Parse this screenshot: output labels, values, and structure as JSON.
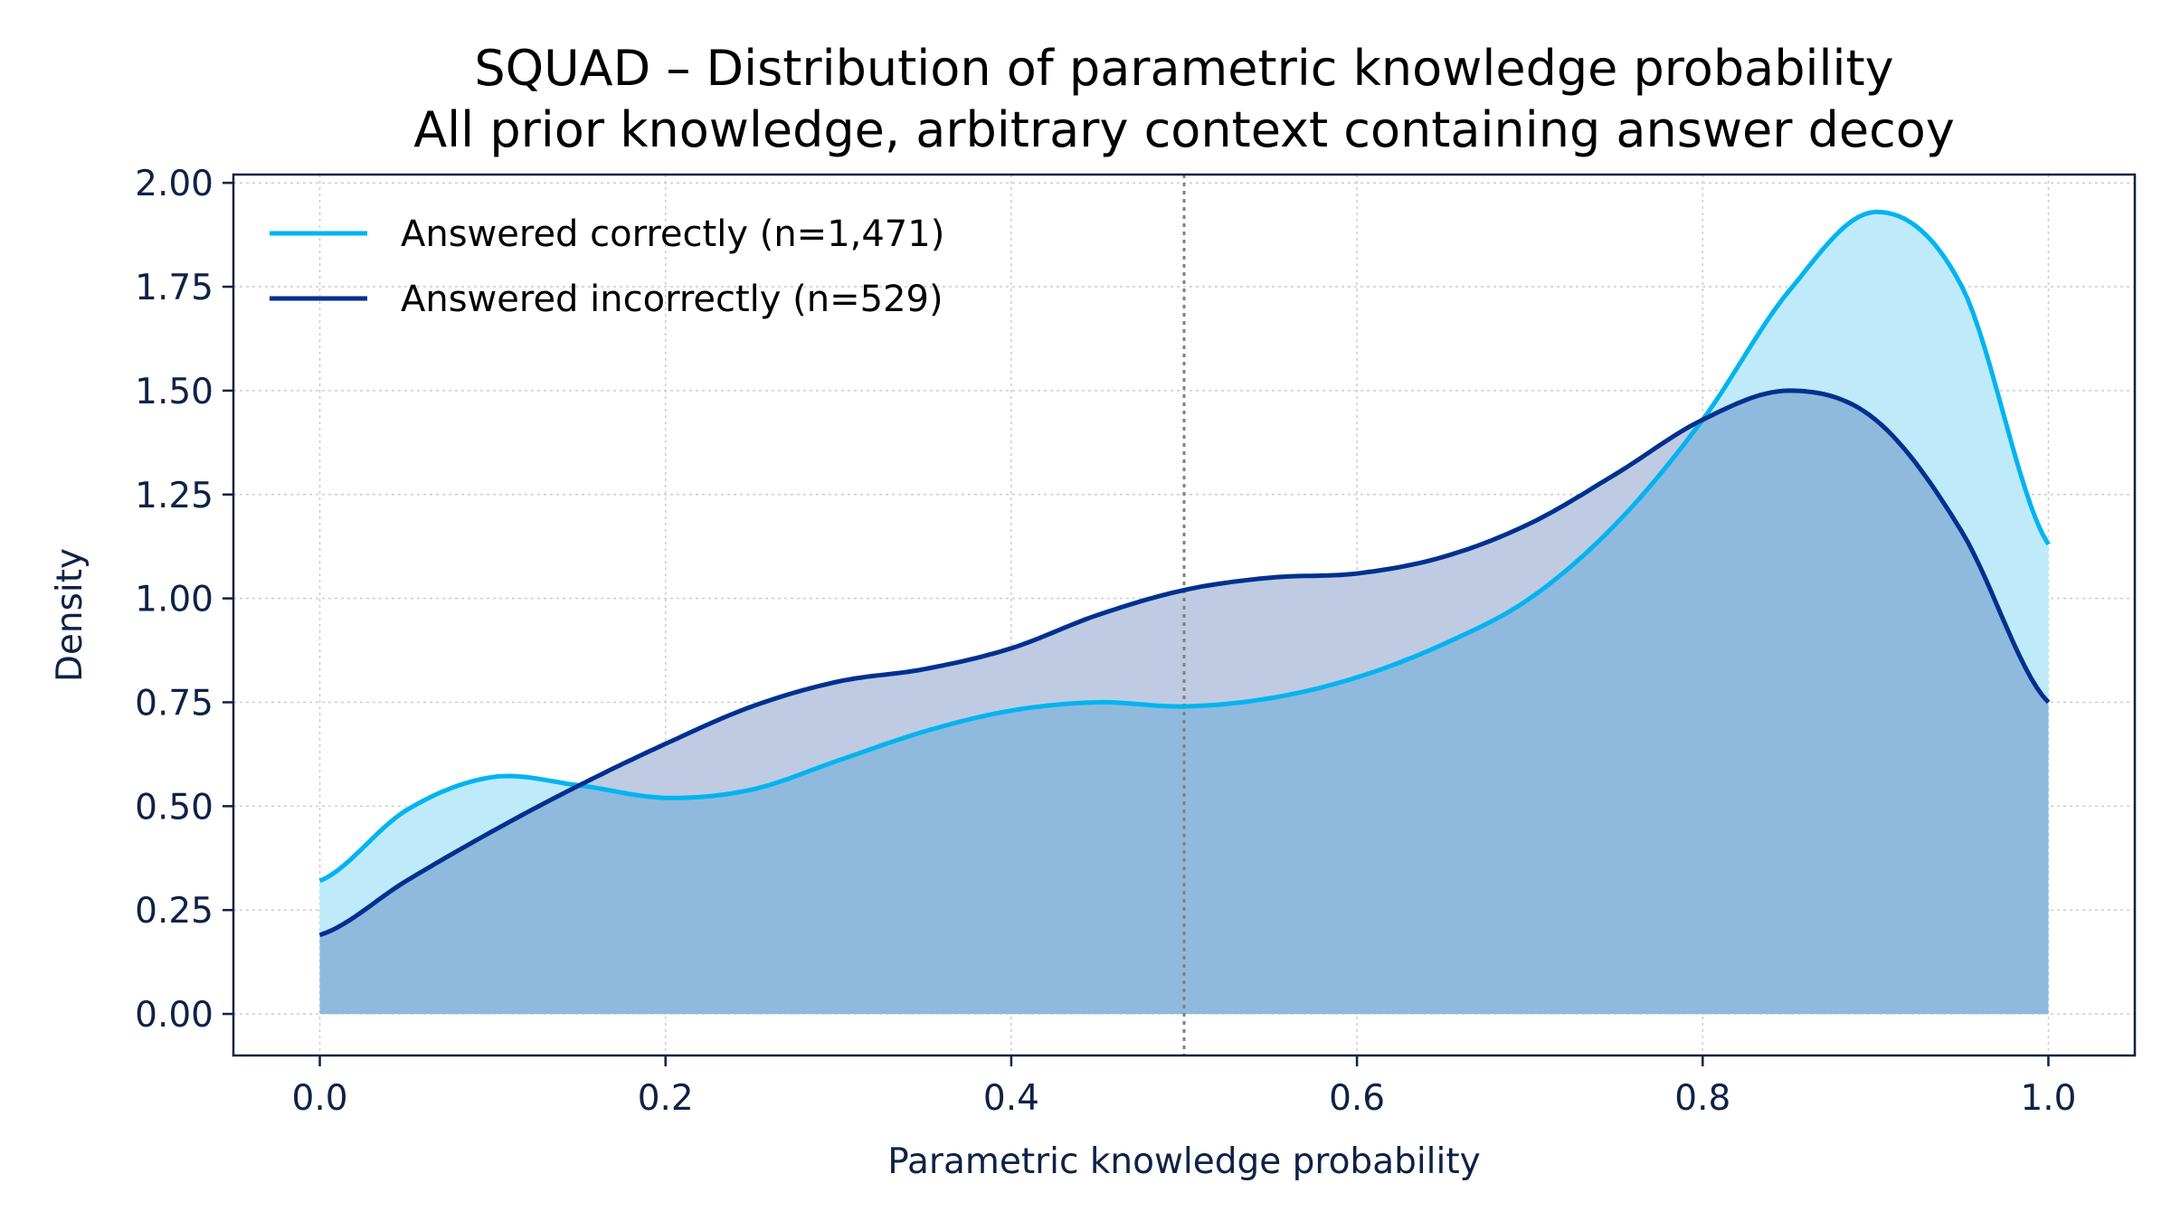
{
  "chart_data": {
    "type": "area",
    "title": "SQUAD – Distribution of parametric knowledge probability",
    "subtitle": "All prior knowledge, arbitrary context containing answer decoy",
    "xlabel": "Parametric knowledge probability",
    "ylabel": "Density",
    "xlim": [
      -0.05,
      1.05
    ],
    "ylim": [
      -0.1,
      2.02
    ],
    "xticks": [
      "0.0",
      "0.2",
      "0.4",
      "0.6",
      "0.8",
      "1.0"
    ],
    "yticks": [
      "0.00",
      "0.25",
      "0.50",
      "0.75",
      "1.00",
      "1.25",
      "1.50",
      "1.75",
      "2.00"
    ],
    "grid": true,
    "legend_position": "top-left",
    "reference_line_x": 0.5,
    "series": [
      {
        "name": "Answered correctly (n=1,471)",
        "color": "#00b4f0",
        "fill": "#bfeaf9",
        "x": [
          0.0,
          0.05,
          0.1,
          0.15,
          0.2,
          0.25,
          0.3,
          0.35,
          0.4,
          0.45,
          0.5,
          0.55,
          0.6,
          0.65,
          0.7,
          0.75,
          0.8,
          0.85,
          0.9,
          0.95,
          1.0
        ],
        "y": [
          0.32,
          0.49,
          0.57,
          0.55,
          0.52,
          0.54,
          0.61,
          0.68,
          0.73,
          0.75,
          0.74,
          0.76,
          0.81,
          0.89,
          1.0,
          1.18,
          1.43,
          1.74,
          1.93,
          1.75,
          1.13
        ]
      },
      {
        "name": "Answered incorrectly (n=529)",
        "color": "#00308f",
        "fill": "#bfcbe3",
        "x": [
          0.0,
          0.05,
          0.1,
          0.15,
          0.2,
          0.25,
          0.3,
          0.35,
          0.4,
          0.45,
          0.5,
          0.55,
          0.6,
          0.65,
          0.7,
          0.75,
          0.8,
          0.85,
          0.9,
          0.95,
          1.0
        ],
        "y": [
          0.19,
          0.32,
          0.44,
          0.55,
          0.65,
          0.74,
          0.8,
          0.83,
          0.88,
          0.96,
          1.02,
          1.05,
          1.06,
          1.1,
          1.18,
          1.3,
          1.43,
          1.5,
          1.43,
          1.16,
          0.75
        ]
      }
    ],
    "overlap_fill": "#8fbadd",
    "axis_color": "#0e2245",
    "grid_color": "#cccccc"
  }
}
